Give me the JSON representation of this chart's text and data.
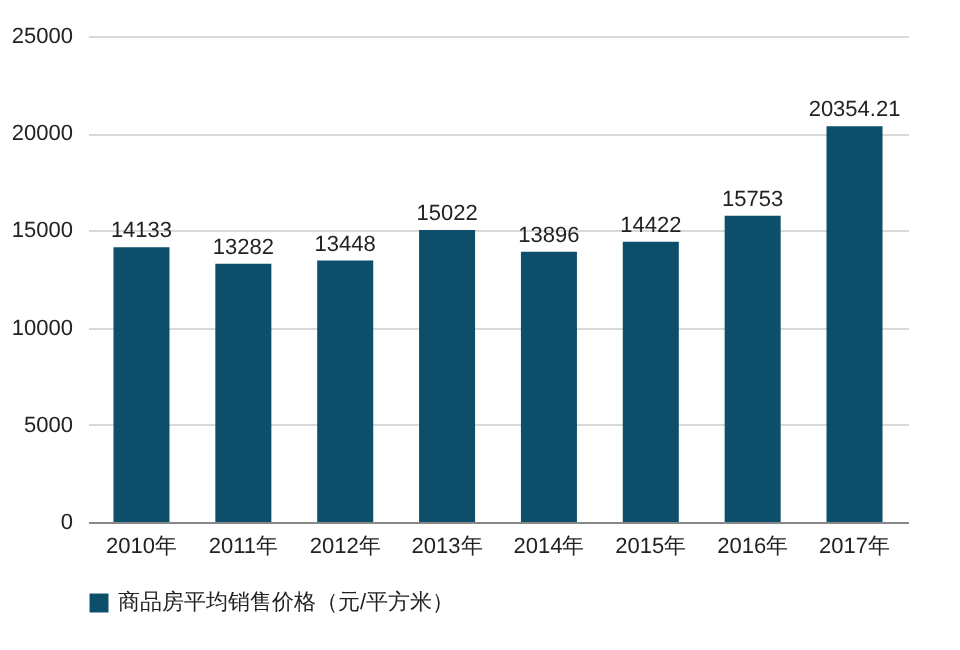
{
  "chart_data": {
    "type": "bar",
    "categories": [
      "2010年",
      "2011年",
      "2012年",
      "2013年",
      "2014年",
      "2015年",
      "2016年",
      "2017年"
    ],
    "series": [
      {
        "name": "商品房平均销售价格（元/平方米）",
        "color": "#0d4f6b",
        "values": [
          14133,
          13282,
          13448,
          15022,
          13896,
          14422,
          15753,
          20354.21
        ]
      }
    ],
    "ylim": [
      0,
      25000
    ],
    "yticks": [
      0,
      5000,
      10000,
      15000,
      20000,
      25000
    ],
    "grid": "y",
    "legend": "bottom",
    "data_labels": true
  }
}
